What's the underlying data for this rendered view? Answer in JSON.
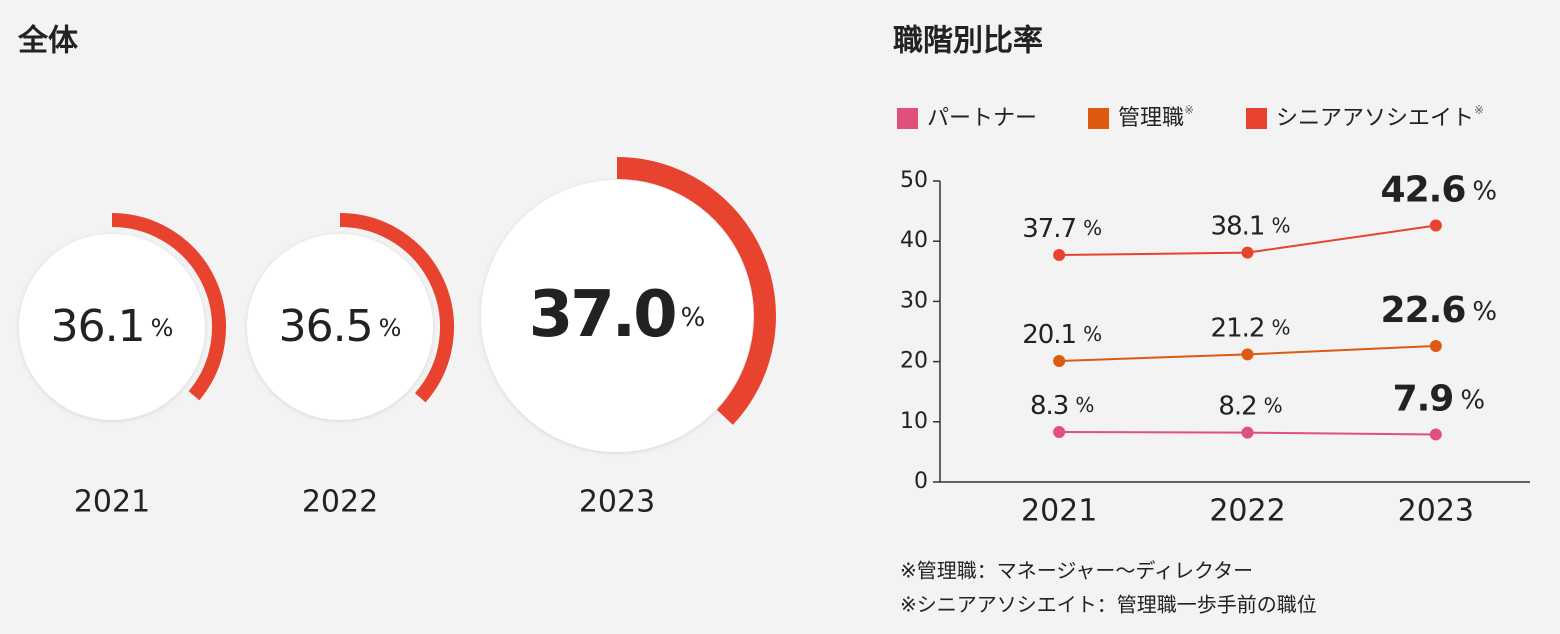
{
  "chart_data": [
    {
      "type": "donut",
      "title": "全体",
      "categories": [
        "2021",
        "2022",
        "2023"
      ],
      "values": [
        36.1,
        36.5,
        37.0
      ],
      "value_labels": [
        "36.1",
        "36.5",
        "37.0"
      ],
      "unit": "%",
      "color": "#e8432e",
      "max": 100
    },
    {
      "type": "line",
      "title": "職階別比率",
      "categories": [
        "2021",
        "2022",
        "2023"
      ],
      "series": [
        {
          "name": "パートナー",
          "color": "#e0507a",
          "values": [
            8.3,
            8.2,
            7.9
          ]
        },
        {
          "name": "管理職",
          "mark": "※",
          "color": "#dd5a10",
          "values": [
            20.1,
            21.2,
            22.6
          ]
        },
        {
          "name": "シニアアソシエイト",
          "mark": "※",
          "color": "#e8432e",
          "values": [
            37.7,
            38.1,
            42.6
          ]
        }
      ],
      "unit": "%",
      "ylim": [
        0,
        50
      ],
      "yticks": [
        0,
        10,
        20,
        30,
        40,
        50
      ],
      "notes": [
        "※管理職：マネージャー～ディレクター",
        "※シニアアソシエイト：管理職一歩手前の職位"
      ]
    }
  ]
}
